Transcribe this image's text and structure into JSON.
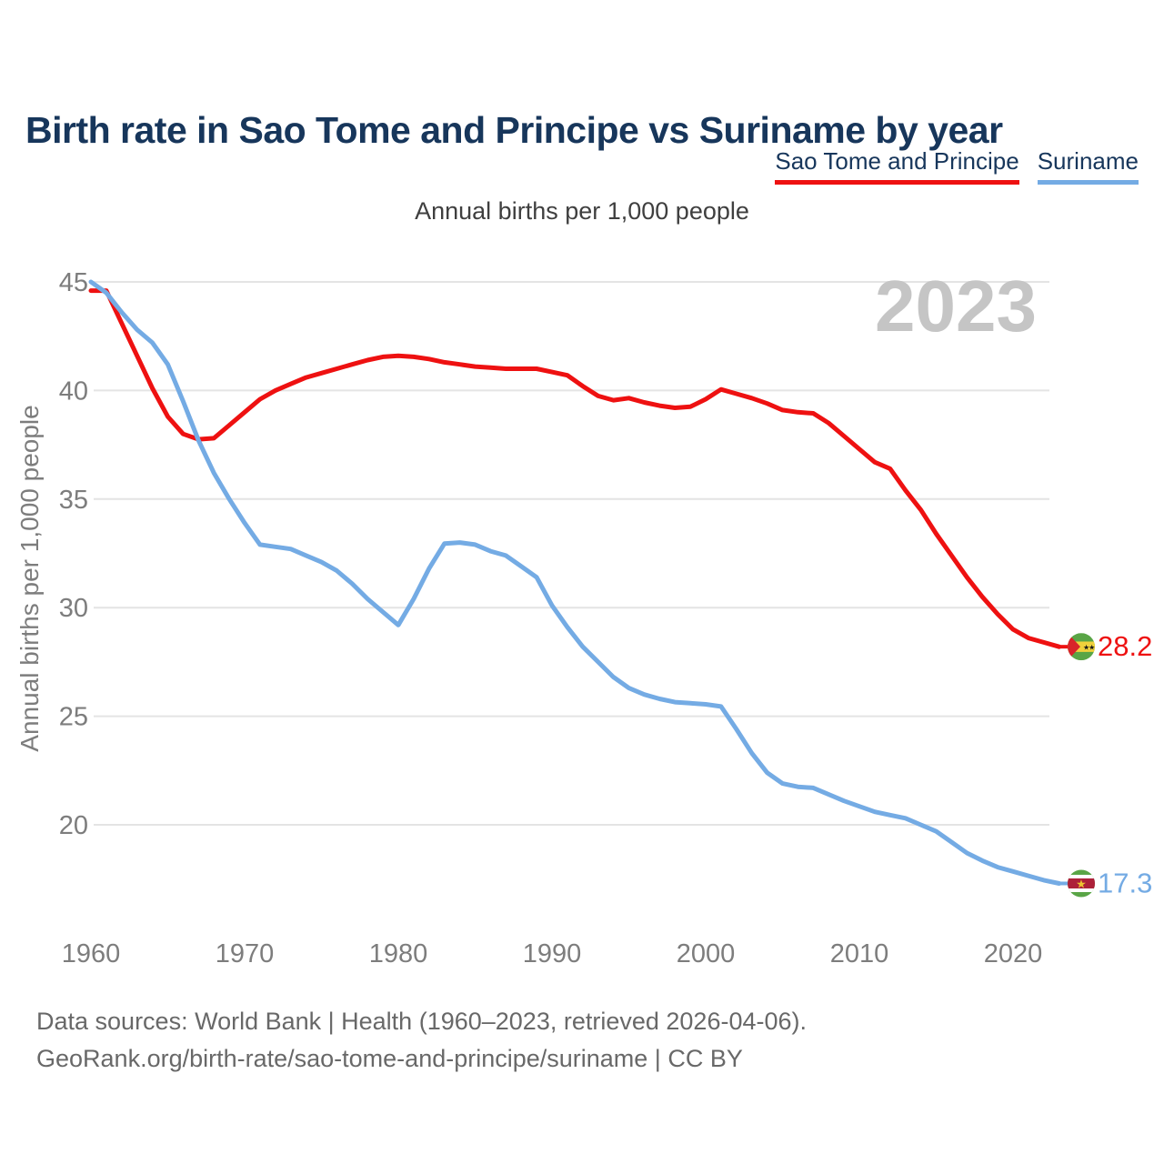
{
  "title": "Birth rate in Sao Tome and Principe vs Suriname by year",
  "subtitle": "Annual births per 1,000 people",
  "watermark": "2023",
  "y_axis_title": "Annual births per 1,000 people",
  "legend": [
    {
      "label": "Sao Tome and Principe",
      "color": "#ee1111"
    },
    {
      "label": "Suriname",
      "color": "#74abe4"
    }
  ],
  "footer": {
    "line1": "Data sources: World Bank | Health (1960–2023, retrieved 2026-04-06).",
    "line2": "GeoRank.org/birth-rate/sao-tome-and-principe/suriname | CC BY"
  },
  "colors": {
    "title_navy": "#17365b",
    "gridline": "#e4e4e4",
    "tick_label": "#7d7d7d",
    "watermark_gray": "#c5c5c5",
    "footer_gray": "#686868"
  },
  "chart_data": {
    "type": "line",
    "title": "Birth rate in Sao Tome and Principe vs Suriname by year",
    "ylabel": "Annual births per 1,000 people",
    "xlabel": "",
    "x_start": 1960,
    "x_end": 2023,
    "ylim": [
      16,
      46
    ],
    "yticks": [
      20,
      25,
      30,
      35,
      40,
      45
    ],
    "xticks": [
      1960,
      1970,
      1980,
      1990,
      2000,
      2010,
      2020
    ],
    "grid": "horizontal",
    "legend_position": "top-right",
    "series": [
      {
        "name": "Sao Tome and Principe",
        "color": "#ee1111",
        "flag": "sao-tome-and-principe",
        "end_label": "28.2",
        "values": [
          44.6,
          44.6,
          43.1,
          41.6,
          40.1,
          38.8,
          38.0,
          37.75,
          37.8,
          38.4,
          39.0,
          39.6,
          40.0,
          40.3,
          40.6,
          40.8,
          41.0,
          41.2,
          41.4,
          41.55,
          41.6,
          41.55,
          41.45,
          41.3,
          41.2,
          41.1,
          41.05,
          41.0,
          41.0,
          41.0,
          40.85,
          40.7,
          40.2,
          39.75,
          39.55,
          39.65,
          39.45,
          39.3,
          39.2,
          39.25,
          39.6,
          40.05,
          39.85,
          39.65,
          39.4,
          39.1,
          39.0,
          38.95,
          38.5,
          37.9,
          37.3,
          36.7,
          36.4,
          35.4,
          34.5,
          33.4,
          32.4,
          31.4,
          30.5,
          29.7,
          29.0,
          28.6,
          28.4,
          28.2
        ]
      },
      {
        "name": "Suriname",
        "color": "#74abe4",
        "flag": "suriname",
        "end_label": "17.3",
        "values": [
          45.0,
          44.5,
          43.6,
          42.8,
          42.2,
          41.2,
          39.5,
          37.7,
          36.2,
          35.0,
          33.9,
          32.9,
          32.8,
          32.7,
          32.4,
          32.1,
          31.7,
          31.1,
          30.4,
          29.8,
          29.2,
          30.4,
          31.8,
          32.95,
          33.0,
          32.9,
          32.6,
          32.4,
          31.9,
          31.4,
          30.1,
          29.1,
          28.2,
          27.5,
          26.8,
          26.3,
          26.0,
          25.8,
          25.65,
          25.6,
          25.55,
          25.45,
          24.4,
          23.3,
          22.4,
          21.9,
          21.75,
          21.7,
          21.4,
          21.1,
          20.85,
          20.6,
          20.45,
          20.3,
          20.0,
          19.7,
          19.2,
          18.7,
          18.35,
          18.05,
          17.85,
          17.65,
          17.45,
          17.3
        ]
      }
    ]
  }
}
